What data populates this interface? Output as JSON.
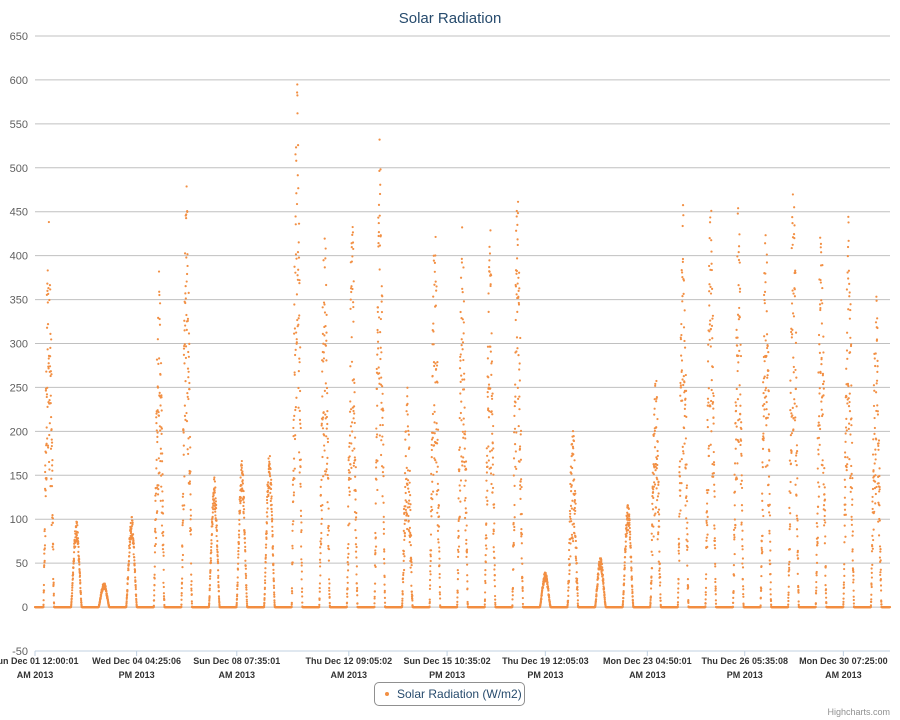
{
  "chart_data": {
    "type": "scatter",
    "title": "Solar Radiation",
    "xlabel": "",
    "ylabel": "",
    "ylim": [
      -50,
      650
    ],
    "yticks": [
      -50,
      0,
      50,
      100,
      150,
      200,
      250,
      300,
      350,
      400,
      450,
      500,
      550,
      600,
      650
    ],
    "x_range": [
      "2013-12-01T00:00:01",
      "2014-01-01T00:00:00"
    ],
    "xticks": [
      {
        "time": "2013-12-01T00:00:01",
        "line1": "Sun Dec 01 12:00:01",
        "line2": "AM 2013"
      },
      {
        "time": "2013-12-04T16:25:06",
        "line1": "Wed Dec 04 04:25:06",
        "line2": "PM 2013"
      },
      {
        "time": "2013-12-08T07:35:01",
        "line1": "Sun Dec 08 07:35:01",
        "line2": "AM 2013"
      },
      {
        "time": "2013-12-12T09:05:02",
        "line1": "Thu Dec 12 09:05:02",
        "line2": "AM 2013"
      },
      {
        "time": "2013-12-15T22:35:02",
        "line1": "Sun Dec 15 10:35:02",
        "line2": "PM 2013"
      },
      {
        "time": "2013-12-19T12:05:03",
        "line1": "Thu Dec 19 12:05:03",
        "line2": "PM 2013"
      },
      {
        "time": "2013-12-23T04:50:01",
        "line1": "Mon Dec 23 04:50:01",
        "line2": "AM 2013"
      },
      {
        "time": "2013-12-26T17:35:08",
        "line1": "Thu Dec 26 05:35:08",
        "line2": "PM 2013"
      },
      {
        "time": "2013-12-30T07:25:00",
        "line1": "Mon Dec 30 07:25:00",
        "line2": "AM 2013"
      }
    ],
    "grid": true,
    "legend_position": "bottom-center",
    "series": [
      {
        "name": "Solar Radiation (W/m2)",
        "color": "#f28f43",
        "marker": "circle",
        "daily_peaks": [
          {
            "date": "2013-12-01",
            "peak": 455
          },
          {
            "date": "2013-12-02",
            "peak": 99
          },
          {
            "date": "2013-12-03",
            "peak": 28
          },
          {
            "date": "2013-12-04",
            "peak": 105
          },
          {
            "date": "2013-12-05",
            "peak": 388
          },
          {
            "date": "2013-12-06",
            "peak": 485
          },
          {
            "date": "2013-12-07",
            "peak": 150
          },
          {
            "date": "2013-12-08",
            "peak": 168
          },
          {
            "date": "2013-12-09",
            "peak": 178
          },
          {
            "date": "2013-12-10",
            "peak": 610
          },
          {
            "date": "2013-12-11",
            "peak": 445
          },
          {
            "date": "2013-12-12",
            "peak": 443
          },
          {
            "date": "2013-12-13",
            "peak": 535
          },
          {
            "date": "2013-12-14",
            "peak": 253
          },
          {
            "date": "2013-12-15",
            "peak": 443
          },
          {
            "date": "2013-12-16",
            "peak": 440
          },
          {
            "date": "2013-12-17",
            "peak": 440
          },
          {
            "date": "2013-12-18",
            "peak": 508
          },
          {
            "date": "2013-12-19",
            "peak": 40
          },
          {
            "date": "2013-12-20",
            "peak": 210
          },
          {
            "date": "2013-12-21",
            "peak": 57
          },
          {
            "date": "2013-12-22",
            "peak": 117
          },
          {
            "date": "2013-12-23",
            "peak": 273
          },
          {
            "date": "2013-12-24",
            "peak": 460
          },
          {
            "date": "2013-12-25",
            "peak": 460
          },
          {
            "date": "2013-12-26",
            "peak": 462
          },
          {
            "date": "2013-12-27",
            "peak": 445
          },
          {
            "date": "2013-12-28",
            "peak": 495
          },
          {
            "date": "2013-12-29",
            "peak": 450
          },
          {
            "date": "2013-12-30",
            "peak": 458
          },
          {
            "date": "2013-12-31",
            "peak": 355
          }
        ]
      }
    ],
    "credits": "Highcharts.com"
  }
}
